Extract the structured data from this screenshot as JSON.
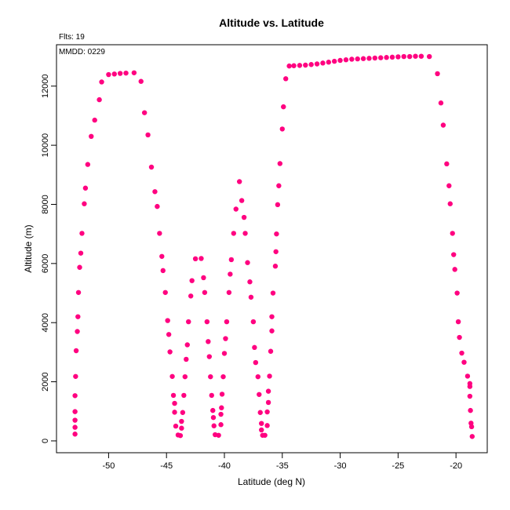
{
  "chart_data": {
    "type": "scatter",
    "title": "Altitude vs. Latitude",
    "xlabel": "Latitude (deg N)",
    "ylabel": "Altitude (m)",
    "annotations": [
      "Flts: 19",
      "MMDD: 0229"
    ],
    "xlim": [
      -54.5,
      -17.3
    ],
    "ylim": [
      -400,
      13400
    ],
    "xticks": [
      -50,
      -45,
      -40,
      -35,
      -30,
      -25,
      -20
    ],
    "yticks": [
      0,
      2000,
      4000,
      6000,
      8000,
      10000,
      12000
    ],
    "point_color": "#ff0080",
    "grid": false,
    "points": [
      [
        -52.9,
        230
      ],
      [
        -52.9,
        460
      ],
      [
        -52.9,
        700
      ],
      [
        -52.9,
        990
      ],
      [
        -52.9,
        1530
      ],
      [
        -52.85,
        2180
      ],
      [
        -52.8,
        3050
      ],
      [
        -52.7,
        3700
      ],
      [
        -52.65,
        4200
      ],
      [
        -52.6,
        5020
      ],
      [
        -52.5,
        5870
      ],
      [
        -52.4,
        6350
      ],
      [
        -52.3,
        7020
      ],
      [
        -52.1,
        8020
      ],
      [
        -52.0,
        8550
      ],
      [
        -51.8,
        9350
      ],
      [
        -51.5,
        10300
      ],
      [
        -51.2,
        10850
      ],
      [
        -50.8,
        11540
      ],
      [
        -50.6,
        12140
      ],
      [
        -50.0,
        12390
      ],
      [
        -49.5,
        12410
      ],
      [
        -49.0,
        12430
      ],
      [
        -48.5,
        12440
      ],
      [
        -47.8,
        12450
      ],
      [
        -47.2,
        12160
      ],
      [
        -46.9,
        11100
      ],
      [
        -46.6,
        10350
      ],
      [
        -46.3,
        9260
      ],
      [
        -46.0,
        8430
      ],
      [
        -45.8,
        7930
      ],
      [
        -45.6,
        7020
      ],
      [
        -45.4,
        6240
      ],
      [
        -45.3,
        5760
      ],
      [
        -45.1,
        5020
      ],
      [
        -44.9,
        4070
      ],
      [
        -44.8,
        3600
      ],
      [
        -44.7,
        3010
      ],
      [
        -44.5,
        2180
      ],
      [
        -44.4,
        1540
      ],
      [
        -44.3,
        1270
      ],
      [
        -44.3,
        970
      ],
      [
        -44.2,
        500
      ],
      [
        -44.0,
        200
      ],
      [
        -43.8,
        180
      ],
      [
        -43.7,
        430
      ],
      [
        -43.7,
        660
      ],
      [
        -43.6,
        960
      ],
      [
        -43.5,
        1540
      ],
      [
        -43.4,
        2170
      ],
      [
        -43.3,
        2760
      ],
      [
        -43.2,
        3250
      ],
      [
        -43.1,
        4030
      ],
      [
        -42.9,
        4900
      ],
      [
        -42.8,
        5420
      ],
      [
        -42.5,
        6160
      ],
      [
        -42.0,
        6170
      ],
      [
        -41.8,
        5520
      ],
      [
        -41.7,
        5020
      ],
      [
        -41.5,
        4030
      ],
      [
        -41.4,
        3360
      ],
      [
        -41.3,
        2850
      ],
      [
        -41.2,
        2170
      ],
      [
        -41.1,
        1540
      ],
      [
        -41.0,
        1030
      ],
      [
        -40.95,
        790
      ],
      [
        -40.9,
        510
      ],
      [
        -40.8,
        210
      ],
      [
        -40.5,
        190
      ],
      [
        -40.3,
        550
      ],
      [
        -40.3,
        900
      ],
      [
        -40.25,
        1120
      ],
      [
        -40.2,
        1580
      ],
      [
        -40.1,
        2170
      ],
      [
        -40.0,
        2960
      ],
      [
        -39.9,
        3460
      ],
      [
        -39.8,
        4030
      ],
      [
        -39.6,
        5020
      ],
      [
        -39.5,
        5640
      ],
      [
        -39.4,
        6130
      ],
      [
        -39.2,
        7020
      ],
      [
        -39.0,
        7840
      ],
      [
        -38.7,
        8770
      ],
      [
        -38.5,
        8130
      ],
      [
        -38.3,
        7560
      ],
      [
        -38.2,
        7020
      ],
      [
        -38.0,
        6030
      ],
      [
        -37.8,
        5380
      ],
      [
        -37.7,
        4860
      ],
      [
        -37.5,
        4030
      ],
      [
        -37.4,
        3160
      ],
      [
        -37.3,
        2650
      ],
      [
        -37.1,
        2170
      ],
      [
        -37.0,
        1570
      ],
      [
        -36.9,
        960
      ],
      [
        -36.8,
        590
      ],
      [
        -36.8,
        370
      ],
      [
        -36.7,
        190
      ],
      [
        -36.5,
        190
      ],
      [
        -36.3,
        520
      ],
      [
        -36.3,
        980
      ],
      [
        -36.2,
        1300
      ],
      [
        -36.2,
        1680
      ],
      [
        -36.1,
        2190
      ],
      [
        -36.0,
        3030
      ],
      [
        -35.9,
        3720
      ],
      [
        -35.9,
        4200
      ],
      [
        -35.8,
        5000
      ],
      [
        -35.6,
        5910
      ],
      [
        -35.55,
        6400
      ],
      [
        -35.5,
        7000
      ],
      [
        -35.4,
        7990
      ],
      [
        -35.3,
        8630
      ],
      [
        -35.2,
        9380
      ],
      [
        -35.0,
        10550
      ],
      [
        -34.9,
        11300
      ],
      [
        -34.7,
        12250
      ],
      [
        -34.4,
        12680
      ],
      [
        -34.0,
        12690
      ],
      [
        -33.5,
        12700
      ],
      [
        -33.0,
        12710
      ],
      [
        -32.5,
        12730
      ],
      [
        -32.0,
        12750
      ],
      [
        -31.5,
        12780
      ],
      [
        -31.0,
        12810
      ],
      [
        -30.5,
        12840
      ],
      [
        -30.0,
        12870
      ],
      [
        -29.5,
        12890
      ],
      [
        -29.0,
        12910
      ],
      [
        -28.5,
        12920
      ],
      [
        -28.0,
        12930
      ],
      [
        -27.5,
        12940
      ],
      [
        -27.0,
        12950
      ],
      [
        -26.5,
        12960
      ],
      [
        -26.0,
        12970
      ],
      [
        -25.5,
        12980
      ],
      [
        -25.0,
        12990
      ],
      [
        -24.5,
        13000
      ],
      [
        -24.0,
        13000
      ],
      [
        -23.5,
        13010
      ],
      [
        -23.0,
        13010
      ],
      [
        -22.3,
        13000
      ],
      [
        -21.6,
        12420
      ],
      [
        -21.3,
        11430
      ],
      [
        -21.1,
        10680
      ],
      [
        -20.8,
        9370
      ],
      [
        -20.6,
        8630
      ],
      [
        -20.5,
        8020
      ],
      [
        -20.3,
        7020
      ],
      [
        -20.2,
        6300
      ],
      [
        -20.1,
        5800
      ],
      [
        -19.9,
        5000
      ],
      [
        -19.8,
        4030
      ],
      [
        -19.7,
        3500
      ],
      [
        -19.5,
        2970
      ],
      [
        -19.3,
        2660
      ],
      [
        -19.0,
        2190
      ],
      [
        -18.8,
        1940
      ],
      [
        -18.8,
        1840
      ],
      [
        -18.8,
        1510
      ],
      [
        -18.75,
        1030
      ],
      [
        -18.7,
        600
      ],
      [
        -18.65,
        480
      ],
      [
        -18.6,
        150
      ]
    ]
  }
}
